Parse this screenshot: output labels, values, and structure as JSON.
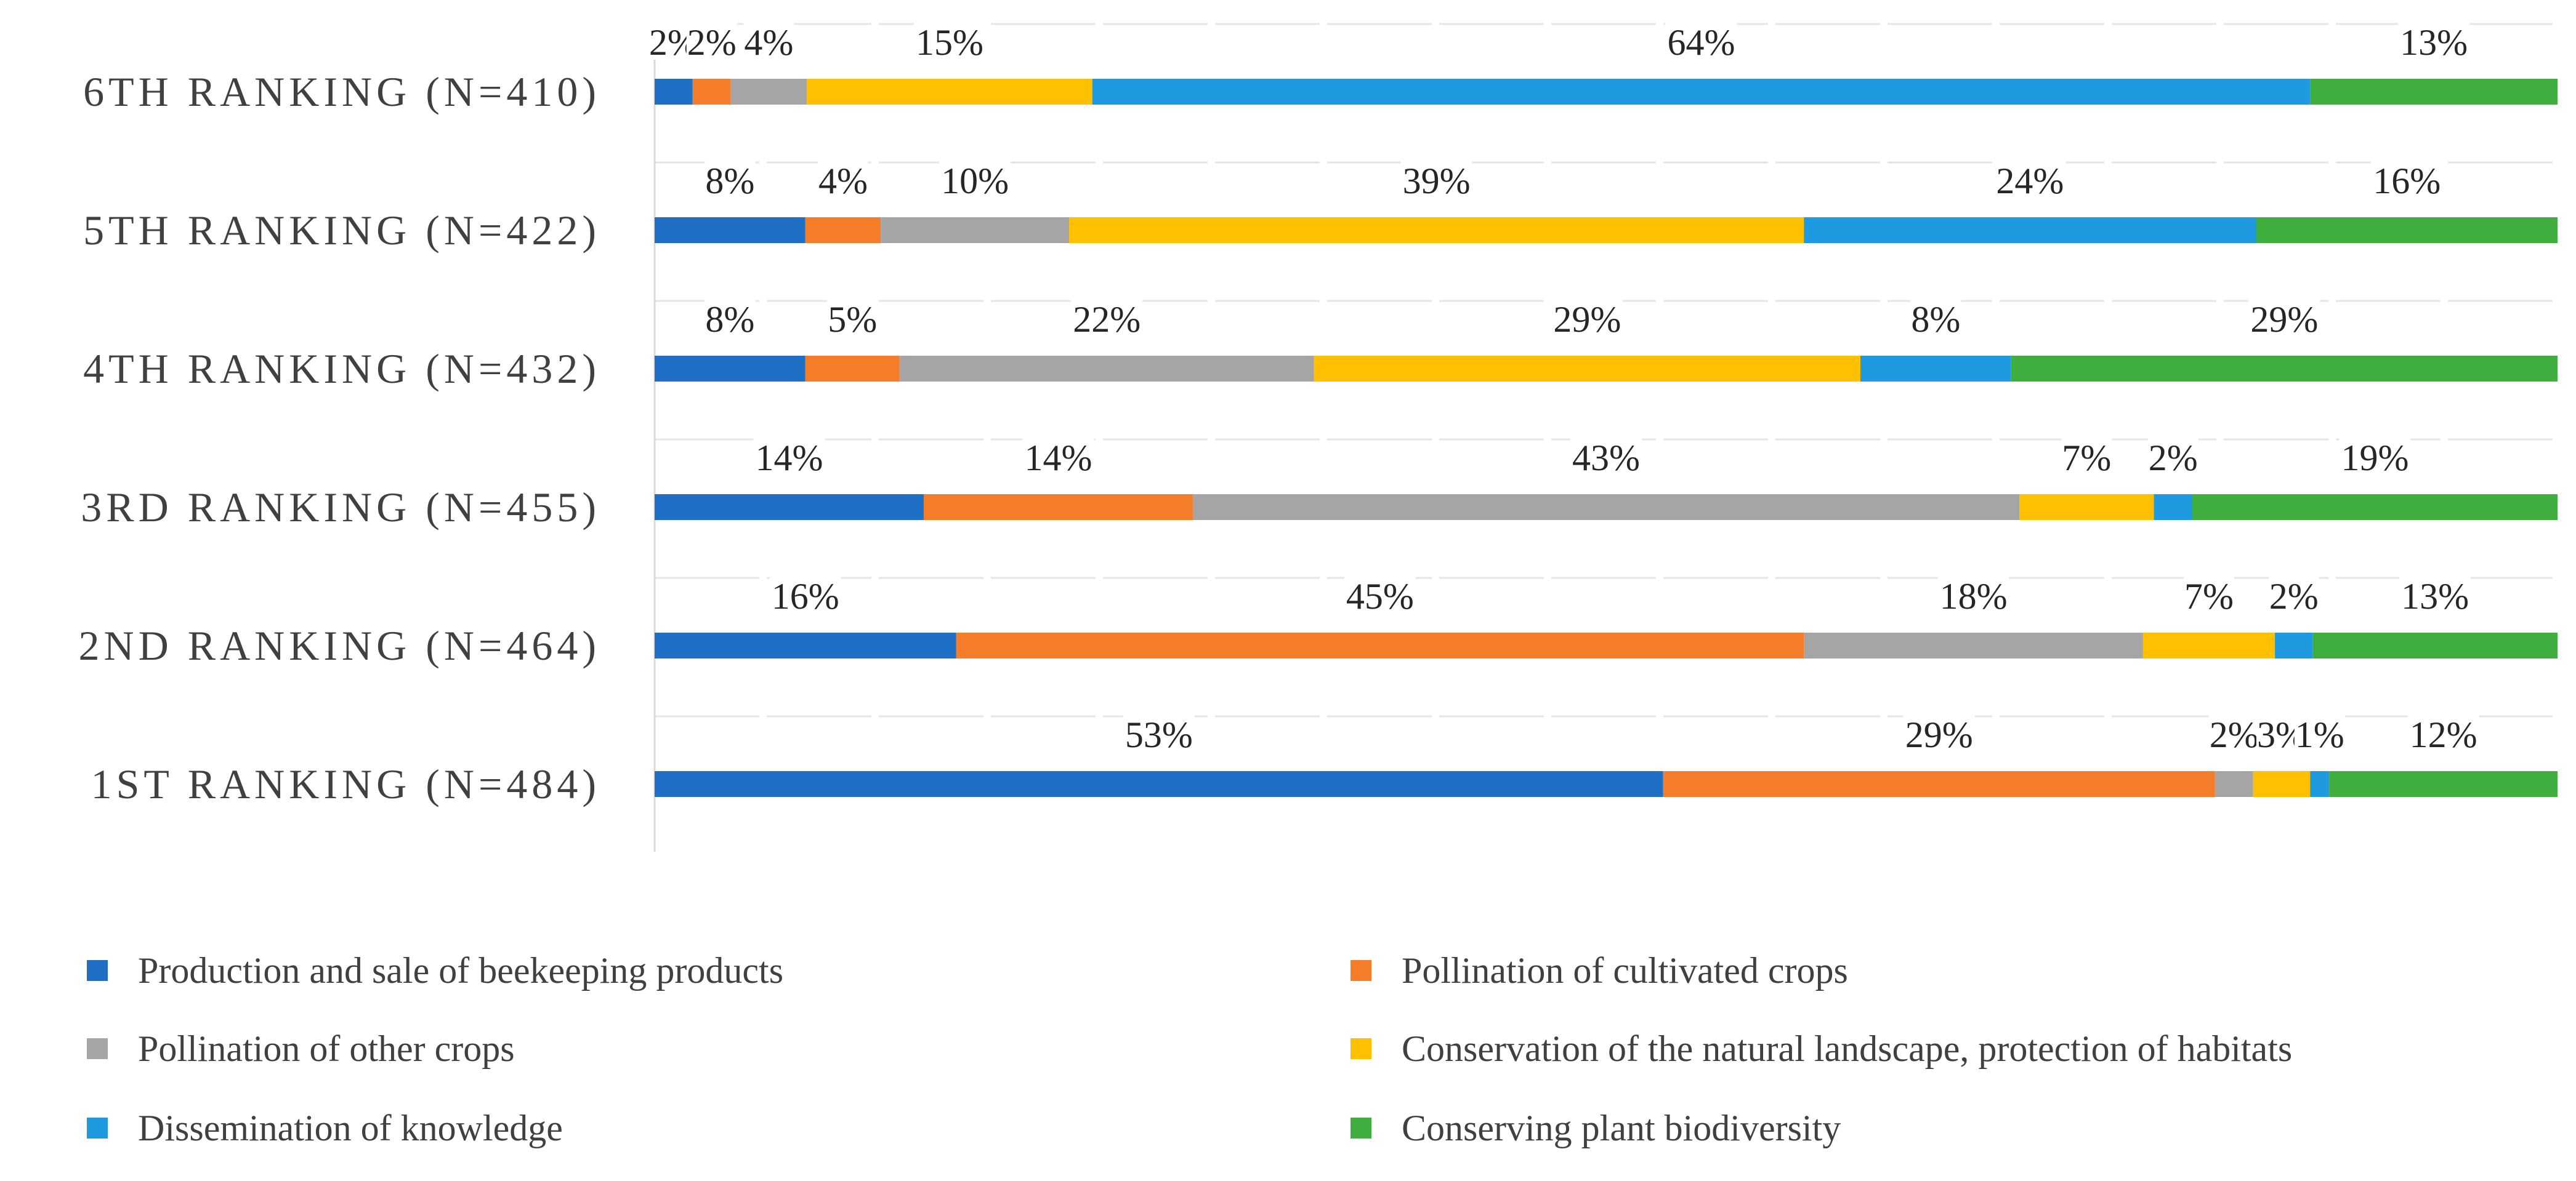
{
  "chart_data": {
    "type": "bar",
    "orientation": "horizontal",
    "stacked": true,
    "normalized_percent": true,
    "categories": [
      "6TH RANKING (N=410)",
      "5TH RANKING (N=422)",
      "4TH RANKING (N=432)",
      "3RD RANKING (N=455)",
      "2ND RANKING (N=464)",
      "1ST RANKING (N=484)"
    ],
    "series": [
      {
        "name": "Production and sale of beekeeping products",
        "color": "#1f6fc6",
        "values": [
          2,
          8,
          8,
          14,
          16,
          53
        ],
        "labels": [
          "2%",
          "8%",
          "8%",
          "14%",
          "16%",
          "53%"
        ]
      },
      {
        "name": "Pollination of cultivated crops",
        "color": "#f57d2a",
        "values": [
          2,
          4,
          5,
          14,
          45,
          29
        ],
        "labels": [
          "2%",
          "4%",
          "5%",
          "14%",
          "45%",
          "29%"
        ]
      },
      {
        "name": "Pollination of other crops",
        "color": "#a5a5a5",
        "values": [
          4,
          10,
          22,
          43,
          18,
          2
        ],
        "labels": [
          "4%",
          "10%",
          "22%",
          "43%",
          "18%",
          "2%"
        ]
      },
      {
        "name": "Conservation of the natural landscape, protection of habitats",
        "color": "#ffc000",
        "values": [
          15,
          39,
          29,
          7,
          7,
          3
        ],
        "labels": [
          "15%",
          "39%",
          "29%",
          "7%",
          "7%",
          "3%"
        ]
      },
      {
        "name": "Dissemination of knowledge",
        "color": "#1f9ae0",
        "values": [
          64,
          24,
          8,
          2,
          2,
          1
        ],
        "labels": [
          "64%",
          "24%",
          "8%",
          "2%",
          "2%",
          "1%"
        ]
      },
      {
        "name": "Conserving plant biodiversity",
        "color": "#3fae3f",
        "values": [
          13,
          16,
          29,
          19,
          13,
          12
        ],
        "labels": [
          "13%",
          "16%",
          "29%",
          "19%",
          "13%",
          "12%"
        ]
      }
    ],
    "legend_position": "bottom",
    "grid": true,
    "title": "",
    "xlabel": "",
    "ylabel": ""
  }
}
